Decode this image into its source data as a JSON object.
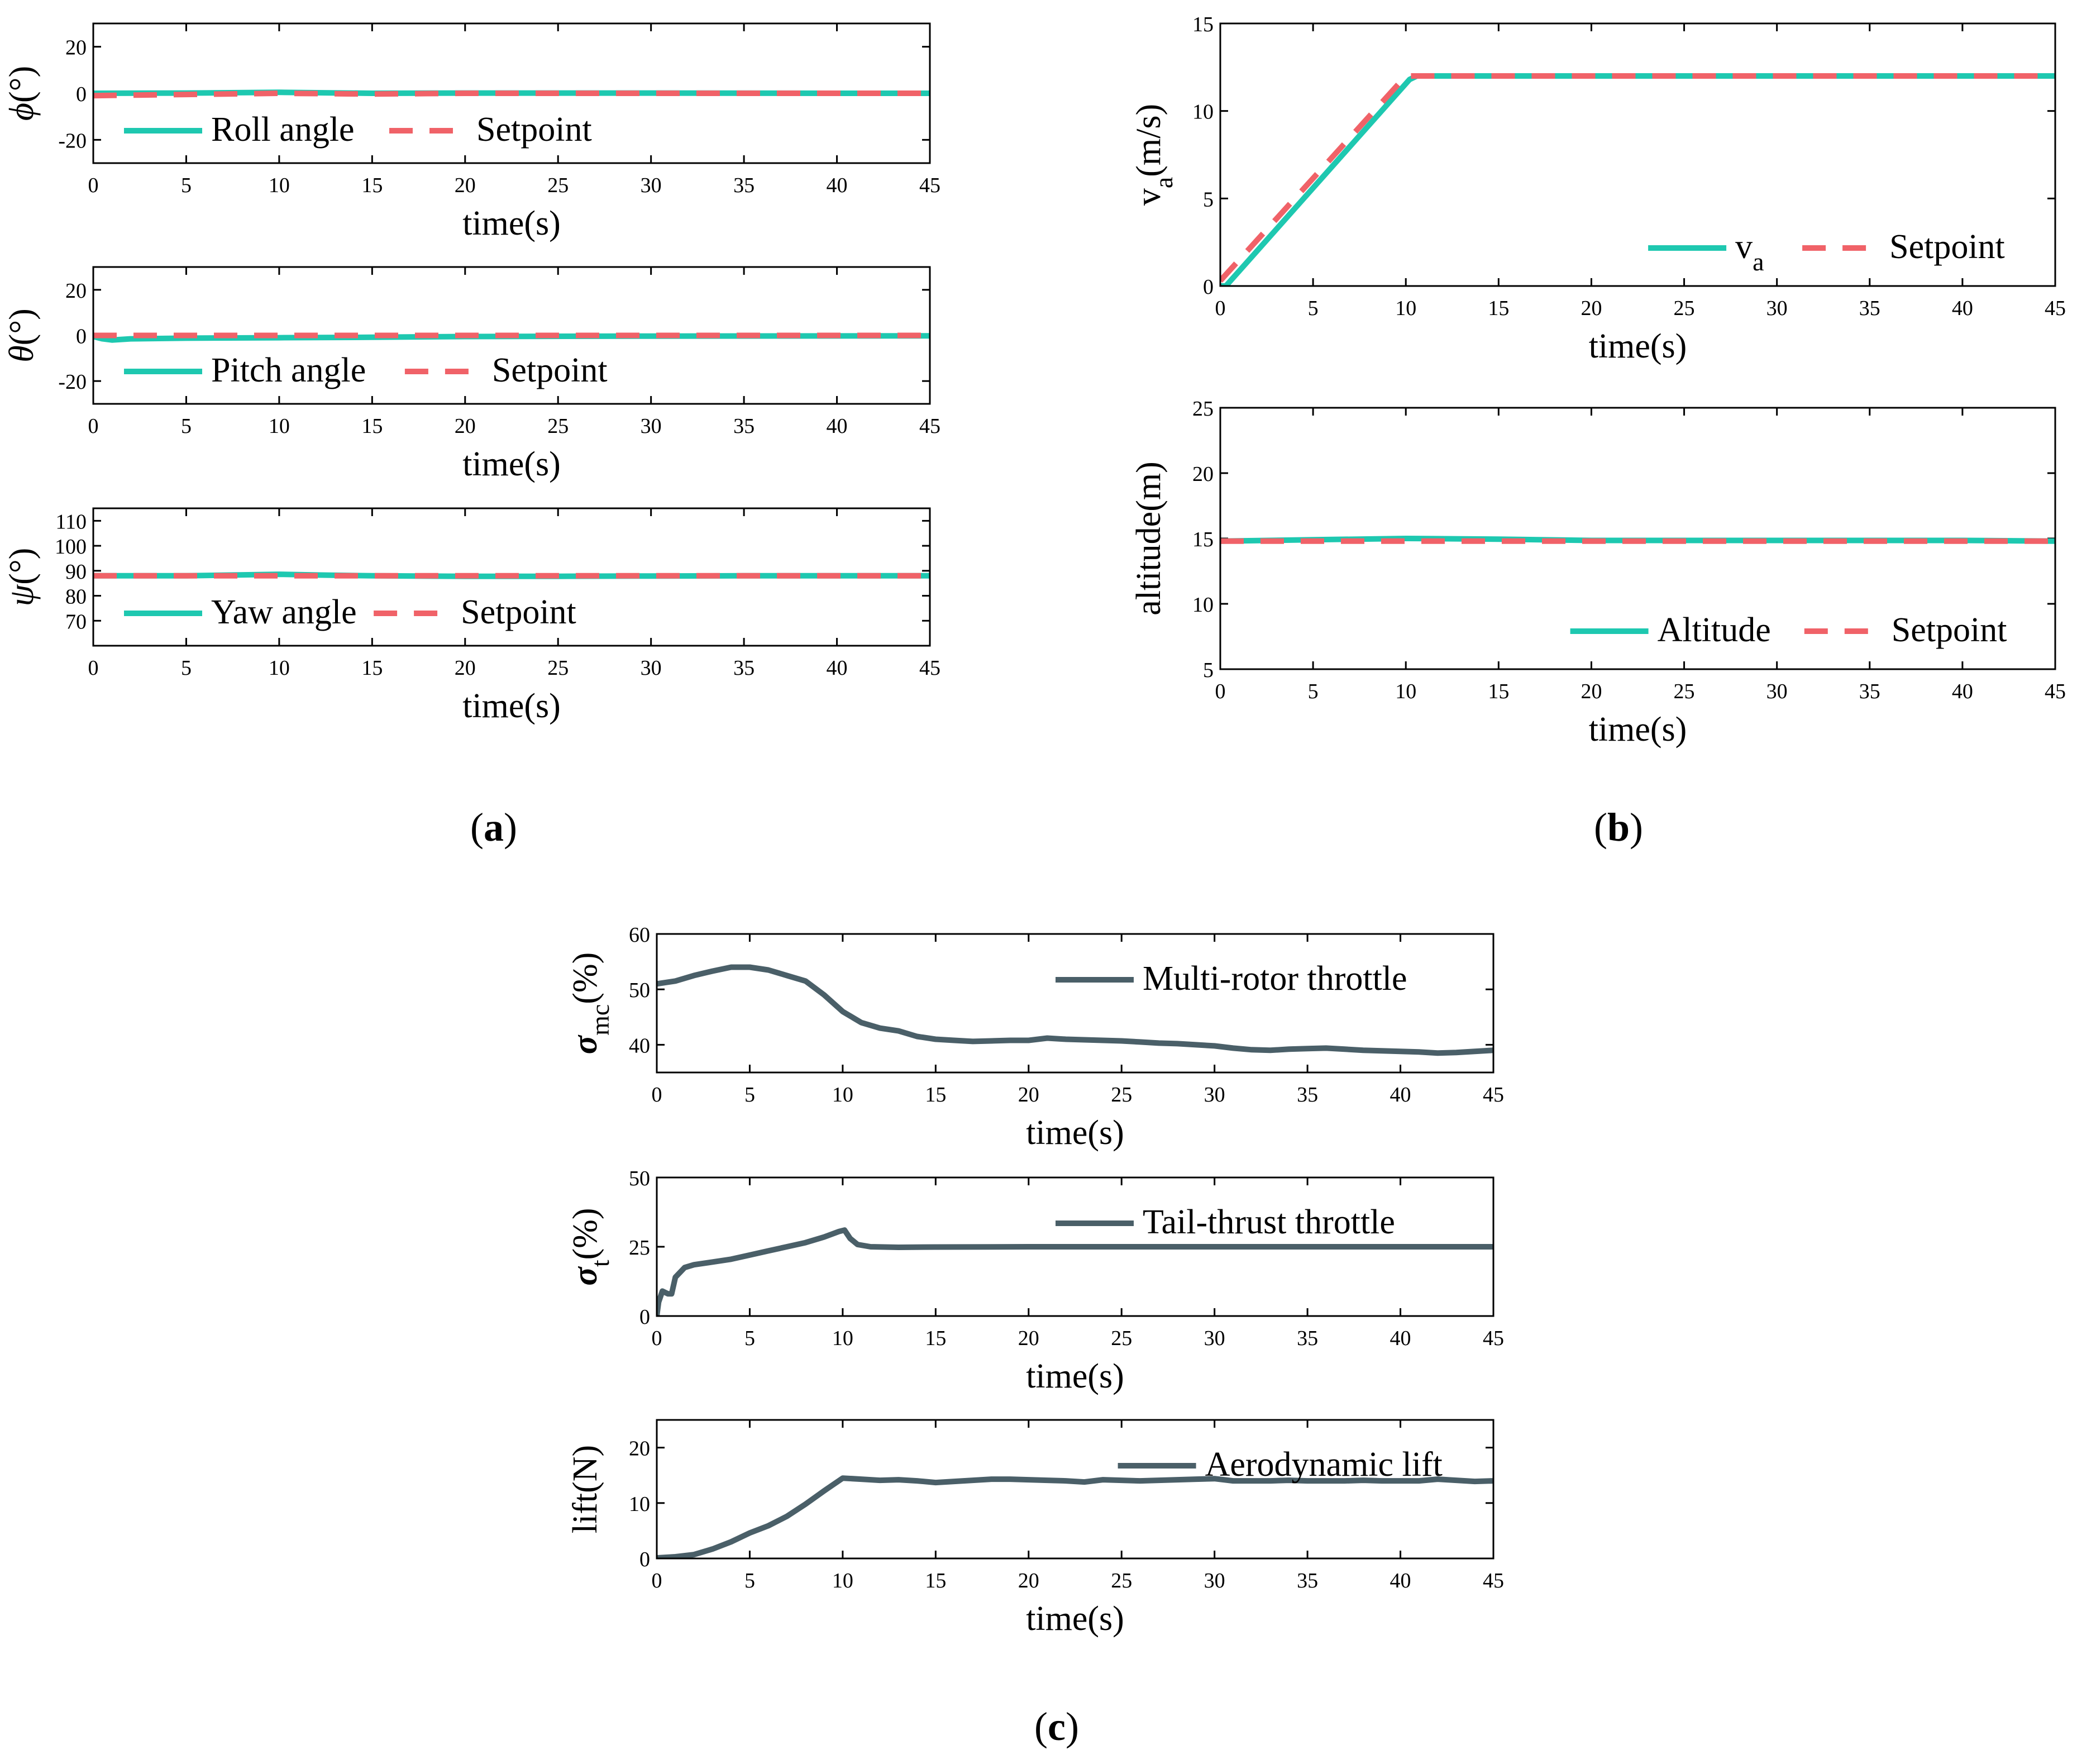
{
  "colors": {
    "response": "#1ec8b0",
    "setpoint": "#f06268",
    "throttle": "#4a5f68",
    "axis": "#000000"
  },
  "captions": {
    "a": "a",
    "b": "b",
    "c": "c"
  },
  "chart_data": [
    {
      "id": "roll",
      "type": "line",
      "panel": "a",
      "ylabel_sym": "ϕ",
      "ylabel_rest": "(°)",
      "xlabel": "time(s)",
      "xlim": [
        0,
        45
      ],
      "ylim": [
        -30,
        30
      ],
      "xticks": [
        0,
        5,
        10,
        15,
        20,
        25,
        30,
        35,
        40,
        45
      ],
      "yticks": [
        -20,
        0,
        20
      ],
      "legend": {
        "position": "bottom-left",
        "entries": [
          "Roll angle",
          "Setpoint"
        ]
      },
      "series": [
        {
          "name": "Roll angle",
          "style": "solid",
          "color": "response",
          "x": [
            0,
            5,
            10,
            15,
            20,
            30,
            40,
            45
          ],
          "y": [
            0,
            0.1,
            0.4,
            0,
            0.1,
            0.1,
            0,
            0
          ]
        },
        {
          "name": "Setpoint",
          "style": "dashed",
          "color": "setpoint",
          "x": [
            0,
            5,
            10,
            15,
            20,
            30,
            40,
            45
          ],
          "y": [
            -1,
            -0.5,
            0,
            -0.3,
            0,
            0,
            0,
            0
          ]
        }
      ]
    },
    {
      "id": "pitch",
      "type": "line",
      "panel": "a",
      "ylabel_sym": "θ",
      "ylabel_rest": "(°)",
      "xlabel": "time(s)",
      "xlim": [
        0,
        45
      ],
      "ylim": [
        -30,
        30
      ],
      "xticks": [
        0,
        5,
        10,
        15,
        20,
        25,
        30,
        35,
        40,
        45
      ],
      "yticks": [
        -20,
        0,
        20
      ],
      "legend": {
        "position": "bottom-left",
        "entries": [
          "Pitch angle",
          "Setpoint"
        ]
      },
      "series": [
        {
          "name": "Pitch angle",
          "style": "solid",
          "color": "response",
          "x": [
            0,
            0.5,
            1,
            2,
            5,
            10,
            15,
            20,
            30,
            45
          ],
          "y": [
            -0.5,
            -1.5,
            -2,
            -1.5,
            -1.2,
            -1,
            -0.8,
            -0.5,
            -0.3,
            -0.2
          ]
        },
        {
          "name": "Setpoint",
          "style": "dashed",
          "color": "setpoint",
          "x": [
            0,
            5,
            10,
            20,
            30,
            45
          ],
          "y": [
            0,
            0,
            0,
            0,
            0,
            0
          ]
        }
      ]
    },
    {
      "id": "yaw",
      "type": "line",
      "panel": "a",
      "ylabel_sym": "ψ",
      "ylabel_rest": "(°)",
      "xlabel": "time(s)",
      "xlim": [
        0,
        45
      ],
      "ylim": [
        60,
        115
      ],
      "xticks": [
        0,
        5,
        10,
        15,
        20,
        25,
        30,
        35,
        40,
        45
      ],
      "yticks": [
        70,
        80,
        90,
        100,
        110
      ],
      "legend": {
        "position": "bottom-left",
        "entries": [
          "Yaw angle",
          "Setpoint"
        ]
      },
      "series": [
        {
          "name": "Yaw angle",
          "style": "solid",
          "color": "response",
          "x": [
            0,
            5,
            10,
            12,
            15,
            20,
            25,
            30,
            35,
            40,
            45
          ],
          "y": [
            88,
            88,
            88.6,
            88.3,
            88,
            87.8,
            87.8,
            87.9,
            88,
            88,
            88
          ]
        },
        {
          "name": "Setpoint",
          "style": "dashed",
          "color": "setpoint",
          "x": [
            0,
            45
          ],
          "y": [
            88,
            88
          ]
        }
      ]
    },
    {
      "id": "airspeed",
      "type": "line",
      "panel": "b",
      "ylabel_sym": "v",
      "ylabel_sub": "a",
      "ylabel_rest": "(m/s)",
      "xlabel": "time(s)",
      "xlim": [
        0,
        45
      ],
      "ylim": [
        0,
        15
      ],
      "xticks": [
        0,
        5,
        10,
        15,
        20,
        25,
        30,
        35,
        40,
        45
      ],
      "yticks": [
        0,
        5,
        10,
        15
      ],
      "legend": {
        "position": "bottom-right",
        "entries": [
          "v_a",
          "Setpoint"
        ]
      },
      "series": [
        {
          "name": "v_a",
          "style": "solid",
          "color": "response",
          "x": [
            0,
            0.3,
            10.2,
            10.6,
            45
          ],
          "y": [
            0,
            0,
            11.8,
            12,
            12
          ]
        },
        {
          "name": "Setpoint",
          "style": "dashed",
          "color": "setpoint",
          "x": [
            0,
            10,
            45
          ],
          "y": [
            0.3,
            12,
            12
          ]
        }
      ]
    },
    {
      "id": "altitude",
      "type": "line",
      "panel": "b",
      "ylabel_sym": "",
      "ylabel_rest": "altitude(m)",
      "xlabel": "time(s)",
      "xlim": [
        0,
        45
      ],
      "ylim": [
        5,
        25
      ],
      "xticks": [
        0,
        5,
        10,
        15,
        20,
        25,
        30,
        35,
        40,
        45
      ],
      "yticks": [
        5,
        10,
        15,
        20,
        25
      ],
      "legend": {
        "position": "bottom-right",
        "entries": [
          "Altitude",
          "Setpoint"
        ]
      },
      "series": [
        {
          "name": "Altitude",
          "style": "solid",
          "color": "response",
          "x": [
            0,
            5,
            10,
            15,
            20,
            30,
            40,
            45
          ],
          "y": [
            14.8,
            14.9,
            15.0,
            14.95,
            14.85,
            14.85,
            14.85,
            14.8
          ]
        },
        {
          "name": "Setpoint",
          "style": "dashed",
          "color": "setpoint",
          "x": [
            0,
            45
          ],
          "y": [
            14.8,
            14.8
          ]
        }
      ]
    },
    {
      "id": "mc_throttle",
      "type": "line",
      "panel": "c",
      "ylabel_sym": "σ",
      "ylabel_sub": "mc",
      "ylabel_rest": "(%)",
      "xlabel": "time(s)",
      "xlim": [
        0,
        45
      ],
      "ylim": [
        35,
        60
      ],
      "xticks": [
        0,
        5,
        10,
        15,
        20,
        25,
        30,
        35,
        40,
        45
      ],
      "yticks": [
        40,
        50,
        60
      ],
      "legend": {
        "position": "top-right",
        "entries": [
          "Multi-rotor throttle"
        ]
      },
      "series": [
        {
          "name": "Multi-rotor throttle",
          "style": "solid",
          "color": "throttle",
          "x": [
            0,
            1,
            2,
            3,
            4,
            5,
            6,
            7,
            8,
            9,
            10,
            11,
            12,
            13,
            14,
            15,
            16,
            17,
            18,
            19,
            20,
            21,
            22,
            23,
            24,
            25,
            26,
            27,
            28,
            29,
            30,
            31,
            32,
            33,
            34,
            35,
            36,
            37,
            38,
            39,
            40,
            41,
            42,
            43,
            44,
            45
          ],
          "y": [
            51,
            51.5,
            52.5,
            53.3,
            54,
            54,
            53.5,
            52.5,
            51.5,
            49,
            46,
            44,
            43,
            42.5,
            41.5,
            41,
            40.8,
            40.6,
            40.7,
            40.8,
            40.8,
            41.2,
            41,
            40.9,
            40.8,
            40.7,
            40.5,
            40.3,
            40.2,
            40,
            39.8,
            39.4,
            39.1,
            39,
            39.2,
            39.3,
            39.4,
            39.2,
            39,
            38.9,
            38.8,
            38.7,
            38.5,
            38.6,
            38.8,
            39
          ]
        }
      ]
    },
    {
      "id": "tail_throttle",
      "type": "line",
      "panel": "c",
      "ylabel_sym": "σ",
      "ylabel_sub": "t",
      "ylabel_rest": "(%)",
      "xlabel": "time(s)",
      "xlim": [
        0,
        45
      ],
      "ylim": [
        0,
        50
      ],
      "xticks": [
        0,
        5,
        10,
        15,
        20,
        25,
        30,
        35,
        40,
        45
      ],
      "yticks": [
        0,
        25,
        50
      ],
      "legend": {
        "position": "top-right",
        "entries": [
          "Tail-thrust throttle"
        ]
      },
      "series": [
        {
          "name": "Tail-thrust throttle",
          "style": "solid",
          "color": "throttle",
          "x": [
            0,
            0.1,
            0.3,
            0.6,
            0.8,
            1,
            1.5,
            2,
            3,
            4,
            5,
            6,
            7,
            8,
            9,
            9.8,
            10.1,
            10.4,
            10.8,
            11.5,
            13,
            15,
            20,
            25,
            30,
            35,
            40,
            45
          ],
          "y": [
            0,
            5,
            9,
            8,
            8,
            14,
            17.5,
            18.5,
            19.5,
            20.5,
            22,
            23.5,
            25,
            26.5,
            28.5,
            30.5,
            31,
            28,
            25.8,
            25,
            24.8,
            24.9,
            25,
            25,
            25,
            25,
            25,
            25
          ]
        }
      ]
    },
    {
      "id": "lift",
      "type": "line",
      "panel": "c",
      "ylabel_sym": "",
      "ylabel_rest": "lift(N)",
      "xlabel": "time(s)",
      "xlim": [
        0,
        45
      ],
      "ylim": [
        0,
        25
      ],
      "xticks": [
        0,
        5,
        10,
        15,
        20,
        25,
        30,
        35,
        40,
        45
      ],
      "yticks": [
        0,
        10,
        20
      ],
      "legend": {
        "position": "top-right",
        "entries": [
          "Aerodynamic lift"
        ]
      },
      "series": [
        {
          "name": "Aerodynamic lift",
          "style": "solid",
          "color": "throttle",
          "x": [
            0,
            1,
            2,
            3,
            4,
            5,
            6,
            7,
            8,
            9,
            10,
            11,
            12,
            13,
            14,
            15,
            16,
            17,
            18,
            19,
            20,
            21,
            22,
            23,
            24,
            25,
            26,
            27,
            28,
            29,
            30,
            31,
            32,
            33,
            34,
            35,
            36,
            37,
            38,
            39,
            40,
            41,
            42,
            43,
            44,
            45
          ],
          "y": [
            0.1,
            0.3,
            0.7,
            1.7,
            3,
            4.6,
            5.9,
            7.6,
            9.8,
            12.2,
            14.5,
            14.3,
            14.1,
            14.2,
            14,
            13.7,
            13.9,
            14.1,
            14.3,
            14.3,
            14.2,
            14.1,
            14,
            13.8,
            14.2,
            14.1,
            14,
            14.1,
            14.2,
            14.3,
            14.4,
            14,
            14,
            14,
            14.1,
            14,
            14,
            14,
            14.1,
            14,
            14,
            14,
            14.3,
            14.1,
            13.9,
            14
          ]
        }
      ]
    }
  ]
}
